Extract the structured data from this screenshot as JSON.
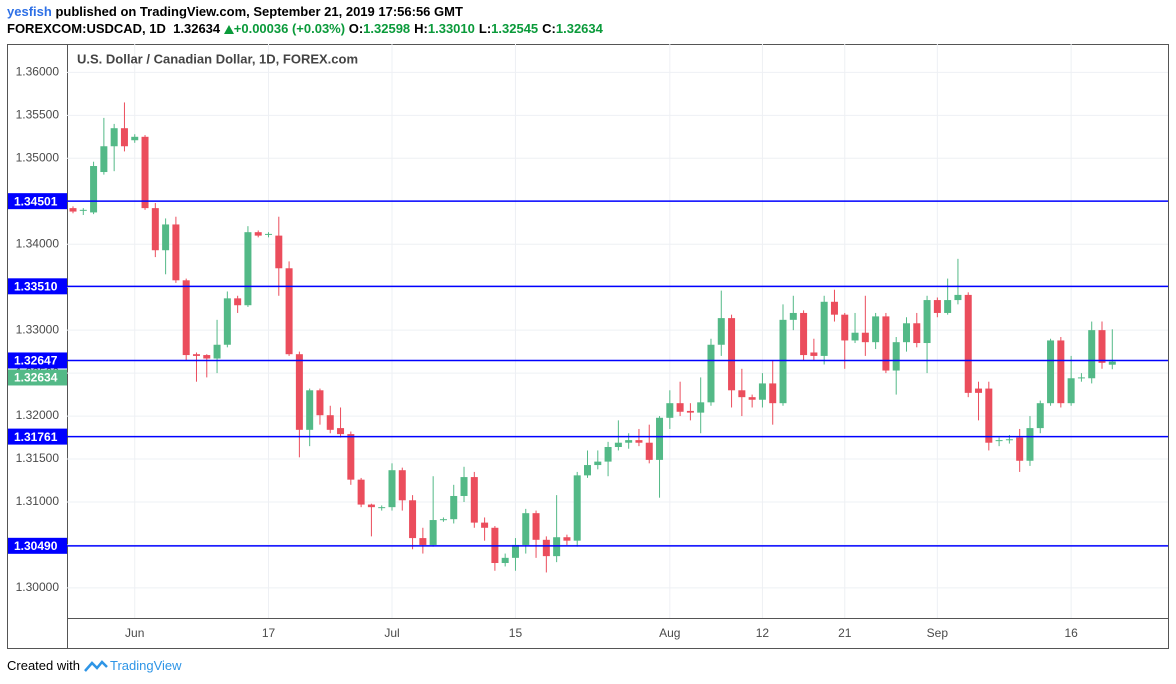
{
  "header": {
    "author": "yesfish",
    "published": "published on TradingView.com, September 21, 2019 17:56:56 GMT",
    "symbol": "FOREXCOM:USDCAD, 1D",
    "last": "1.32634",
    "change": "+0.00036 (+0.03%)",
    "fields": [
      {
        "label": "O:",
        "value": "1.32598"
      },
      {
        "label": "H:",
        "value": "1.33010"
      },
      {
        "label": "L:",
        "value": "1.32545"
      },
      {
        "label": "C:",
        "value": "1.32634"
      }
    ]
  },
  "footer": {
    "text": "Created with",
    "brand": "TradingView"
  },
  "chart_data": {
    "type": "candlestick",
    "title": "U.S. Dollar / Canadian Dollar, 1D, FOREX.com",
    "categories": [
      null,
      null,
      null,
      null,
      null,
      null,
      "Jun",
      null,
      null,
      null,
      null,
      null,
      null,
      null,
      null,
      null,
      null,
      null,
      null,
      "17",
      null,
      null,
      null,
      null,
      null,
      null,
      null,
      null,
      null,
      null,
      null,
      "Jul",
      null,
      null,
      null,
      null,
      null,
      null,
      null,
      null,
      null,
      null,
      null,
      "15",
      null,
      null,
      null,
      null,
      null,
      null,
      null,
      null,
      null,
      null,
      null,
      null,
      null,
      null,
      "Aug",
      null,
      null,
      null,
      null,
      null,
      null,
      null,
      null,
      "12",
      null,
      null,
      null,
      null,
      null,
      null,
      null,
      "21",
      null,
      null,
      null,
      null,
      null,
      null,
      null,
      null,
      "Sep",
      null,
      null,
      null,
      null,
      null,
      null,
      null,
      null,
      null,
      null,
      null,
      null,
      "16",
      null,
      null,
      null,
      null
    ],
    "open": [
      1.3442,
      1.3439,
      1.3437,
      1.3484,
      1.3514,
      1.3535,
      1.3521,
      1.3525,
      1.3442,
      1.3393,
      1.3423,
      1.3358,
      1.3272,
      1.3271,
      1.3267,
      1.3283,
      1.3337,
      1.3329,
      1.3414,
      1.3411,
      1.341,
      1.3372,
      1.3272,
      1.3184,
      1.323,
      1.3201,
      1.3186,
      1.3179,
      1.3126,
      1.3097,
      1.3093,
      1.3094,
      1.3137,
      1.3102,
      1.3058,
      1.305,
      1.3079,
      1.308,
      1.3107,
      1.3129,
      1.3076,
      1.307,
      1.3029,
      1.3035,
      1.305,
      1.3087,
      1.3056,
      1.3037,
      1.3059,
      1.3055,
      1.3131,
      1.3143,
      1.3147,
      1.3164,
      1.3169,
      1.3172,
      1.3169,
      1.3149,
      1.3198,
      1.3215,
      1.3206,
      1.3204,
      1.3216,
      1.3283,
      1.3314,
      1.323,
      1.3222,
      1.3219,
      1.3238,
      1.3215,
      1.3312,
      1.332,
      1.3274,
      1.327,
      1.3333,
      1.3318,
      1.3288,
      1.3297,
      1.3286,
      1.3316,
      1.3253,
      1.3286,
      1.3308,
      1.3285,
      1.3335,
      1.332,
      1.3335,
      1.3341,
      1.3232,
      1.3232,
      1.3171,
      1.3172,
      1.3175,
      1.3148,
      1.3186,
      1.3215,
      1.3288,
      1.3215,
      1.3244,
      1.3244,
      1.33,
      1.32598
    ],
    "high": [
      1.3444,
      1.3442,
      1.3496,
      1.3547,
      1.354,
      1.3565,
      1.3528,
      1.3527,
      1.3448,
      1.343,
      1.3432,
      1.336,
      1.3274,
      1.3272,
      1.3312,
      1.3345,
      1.334,
      1.3421,
      1.3416,
      1.3414,
      1.3432,
      1.338,
      1.3275,
      1.3232,
      1.3232,
      1.3212,
      1.321,
      1.3182,
      1.3128,
      1.3098,
      1.3096,
      1.3145,
      1.314,
      1.3108,
      1.307,
      1.313,
      1.3082,
      1.312,
      1.3141,
      1.3135,
      1.3082,
      1.3072,
      1.304,
      1.3058,
      1.3092,
      1.309,
      1.306,
      1.3108,
      1.3062,
      1.3135,
      1.316,
      1.316,
      1.317,
      1.3195,
      1.318,
      1.3185,
      1.319,
      1.32,
      1.323,
      1.324,
      1.3215,
      1.3245,
      1.329,
      1.3346,
      1.3318,
      1.3255,
      1.3225,
      1.325,
      1.3265,
      1.333,
      1.334,
      1.3323,
      1.329,
      1.334,
      1.3347,
      1.332,
      1.332,
      1.334,
      1.332,
      1.332,
      1.3292,
      1.3315,
      1.332,
      1.334,
      1.3338,
      1.336,
      1.3383,
      1.3344,
      1.324,
      1.324,
      1.3175,
      1.3178,
      1.3185,
      1.32,
      1.3218,
      1.329,
      1.3292,
      1.327,
      1.325,
      1.331,
      1.331,
      1.3301
    ],
    "low": [
      1.3436,
      1.3434,
      1.3435,
      1.3481,
      1.3485,
      1.3508,
      1.3518,
      1.344,
      1.3385,
      1.3365,
      1.3355,
      1.3265,
      1.324,
      1.3245,
      1.325,
      1.328,
      1.332,
      1.3327,
      1.3408,
      1.3408,
      1.334,
      1.327,
      1.3152,
      1.3165,
      1.319,
      1.318,
      1.3175,
      1.312,
      1.3094,
      1.306,
      1.309,
      1.309,
      1.309,
      1.3045,
      1.304,
      1.3048,
      1.3077,
      1.3075,
      1.31,
      1.307,
      1.3055,
      1.302,
      1.3025,
      1.302,
      1.304,
      1.3035,
      1.3018,
      1.303,
      1.305,
      1.3048,
      1.3128,
      1.3138,
      1.313,
      1.316,
      1.3162,
      1.3165,
      1.3145,
      1.3105,
      1.3185,
      1.32,
      1.3195,
      1.318,
      1.3212,
      1.327,
      1.321,
      1.32,
      1.321,
      1.321,
      1.319,
      1.3212,
      1.33,
      1.3265,
      1.3265,
      1.326,
      1.331,
      1.3255,
      1.3285,
      1.327,
      1.3278,
      1.325,
      1.3225,
      1.3275,
      1.328,
      1.325,
      1.3315,
      1.3318,
      1.333,
      1.3222,
      1.3195,
      1.316,
      1.3165,
      1.3168,
      1.3135,
      1.3142,
      1.318,
      1.3212,
      1.321,
      1.3212,
      1.324,
      1.3238,
      1.3255,
      1.32545
    ],
    "close": [
      1.3438,
      1.344,
      1.3491,
      1.3514,
      1.3535,
      1.3514,
      1.3525,
      1.3442,
      1.3393,
      1.3423,
      1.3358,
      1.3271,
      1.327,
      1.3267,
      1.3283,
      1.3337,
      1.3329,
      1.3414,
      1.341,
      1.3412,
      1.3372,
      1.3272,
      1.3184,
      1.323,
      1.3201,
      1.3184,
      1.3179,
      1.3126,
      1.3097,
      1.3094,
      1.3094,
      1.3137,
      1.3102,
      1.3058,
      1.305,
      1.3079,
      1.308,
      1.3107,
      1.3129,
      1.3076,
      1.307,
      1.3029,
      1.3035,
      1.305,
      1.3087,
      1.3056,
      1.3037,
      1.3059,
      1.3055,
      1.3131,
      1.3143,
      1.3147,
      1.3164,
      1.3169,
      1.3172,
      1.3169,
      1.3149,
      1.3198,
      1.3215,
      1.3205,
      1.3204,
      1.3216,
      1.3283,
      1.3314,
      1.323,
      1.3222,
      1.3219,
      1.3238,
      1.3215,
      1.3312,
      1.332,
      1.3271,
      1.327,
      1.3333,
      1.3318,
      1.3288,
      1.3297,
      1.3286,
      1.3316,
      1.3253,
      1.3286,
      1.3308,
      1.3285,
      1.3335,
      1.332,
      1.3335,
      1.3341,
      1.3227,
      1.3227,
      1.3169,
      1.3172,
      1.3173,
      1.3148,
      1.3186,
      1.3215,
      1.3288,
      1.3215,
      1.3244,
      1.3245,
      1.33,
      1.3262,
      1.32634
    ],
    "up_color": "#53b987",
    "down_color": "#eb4d5c",
    "ylim": [
      1.2965,
      1.3633
    ],
    "yticks": [
      {
        "value": 1.3,
        "label": "1.30000"
      },
      {
        "value": 1.305,
        "label": "1.30500"
      },
      {
        "value": 1.31,
        "label": "1.31000"
      },
      {
        "value": 1.315,
        "label": "1.31500"
      },
      {
        "value": 1.32,
        "label": "1.32000"
      },
      {
        "value": 1.325,
        "label": "1.32500"
      },
      {
        "value": 1.33,
        "label": "1.33000"
      },
      {
        "value": 1.335,
        "label": "1.33500"
      },
      {
        "value": 1.34,
        "label": "1.34000"
      },
      {
        "value": 1.345,
        "label": "1.34500"
      },
      {
        "value": 1.35,
        "label": "1.35000"
      },
      {
        "value": 1.355,
        "label": "1.35500"
      },
      {
        "value": 1.36,
        "label": "1.36000"
      }
    ],
    "grid": true,
    "hlines": [
      1.34501,
      {
        "value": 1.3351,
        "label": "1.33510"
      },
      1.32647,
      1.31761,
      {
        "value": 1.3049,
        "label": "1.30490"
      }
    ],
    "hline_color": "#0000ff",
    "last_price": 1.32634
  }
}
